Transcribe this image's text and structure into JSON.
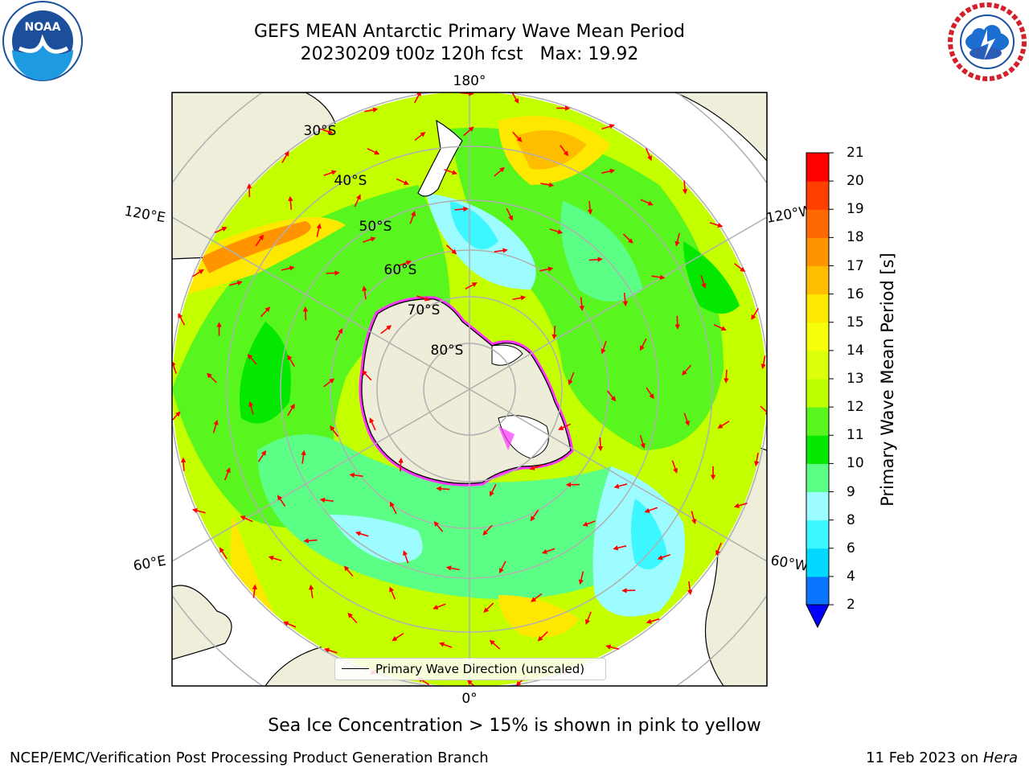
{
  "header": {
    "title": "GEFS MEAN Antarctic Primary Wave Mean Period",
    "subtitle": "20230209 t00z 120h fcst   Max: 19.92"
  },
  "logos": {
    "left": "noaa-logo",
    "left_text": "NOAA",
    "right": "nws-logo"
  },
  "map": {
    "projection": "south-polar-stereographic",
    "longitude_labels": {
      "top": "180°",
      "bottom": "0°",
      "upper_left": "120°E",
      "lower_left": "60°E",
      "upper_right": "120°W",
      "lower_right": "60°W"
    },
    "latitude_labels": [
      "30°S",
      "40°S",
      "50°S",
      "60°S",
      "70°S",
      "80°S"
    ],
    "legend_label": "Primary Wave Direction (unscaled)",
    "caption": "Sea Ice Concentration > 15% is shown in pink to yellow"
  },
  "colorbar": {
    "label": "Primary Wave Mean Period [s]",
    "ticks": [
      "2",
      "4",
      "6",
      "8",
      "9",
      "10",
      "11",
      "12",
      "13",
      "14",
      "15",
      "16",
      "17",
      "18",
      "19",
      "20",
      "21"
    ],
    "colors": [
      "#0a74ff",
      "#00d8ff",
      "#3cf7ff",
      "#9cfcff",
      "#5cff86",
      "#04e800",
      "#59f51f",
      "#bbff00",
      "#dcff0a",
      "#f6ff08",
      "#ffe800",
      "#ffbd00",
      "#ff9300",
      "#ff6800",
      "#ff3e00",
      "#ff0000"
    ],
    "under_color": "#0000ff",
    "map_colors": {
      "land": "#efeedb",
      "antarctica": "#eeedd9",
      "ice_edge": "#ff33ff",
      "ocean_background": "#c4ff00",
      "arrows": "#ff0000"
    }
  },
  "footer": {
    "left": "NCEP/EMC/Verification Post Processing Product Generation Branch",
    "right_date": "11 Feb 2023 on ",
    "right_host": "Hera"
  }
}
